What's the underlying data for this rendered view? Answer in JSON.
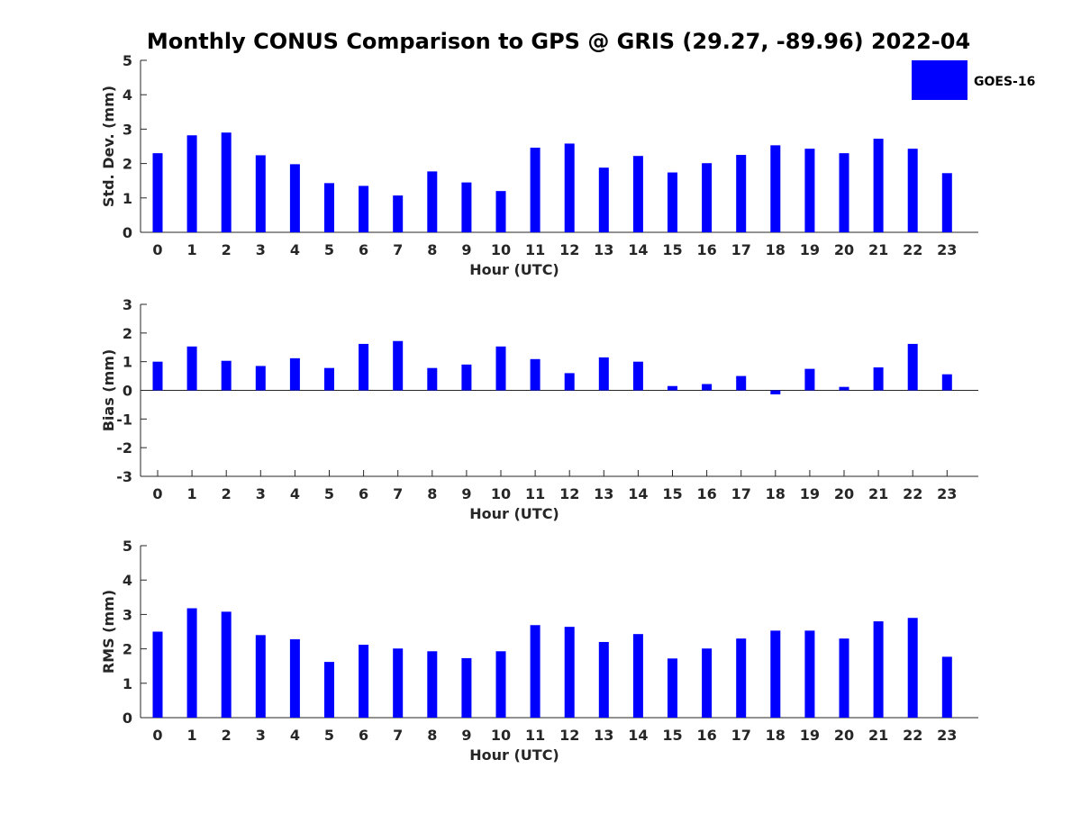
{
  "title": "Monthly CONUS Comparison to GPS @ GRIS (29.27, -89.96) 2022-04",
  "legend": {
    "label": "GOES-16",
    "color": "#0000ff",
    "placement": "top-right"
  },
  "chart_data": [
    {
      "type": "bar",
      "ylabel": "Std. Dev. (mm)",
      "xlabel": "Hour (UTC)",
      "ylim": [
        0,
        5
      ],
      "yticks": [
        "0",
        "1",
        "2",
        "3",
        "4",
        "5"
      ],
      "categories": [
        "0",
        "1",
        "2",
        "3",
        "4",
        "5",
        "6",
        "7",
        "8",
        "9",
        "10",
        "11",
        "12",
        "13",
        "14",
        "15",
        "16",
        "17",
        "18",
        "19",
        "20",
        "21",
        "22",
        "23"
      ],
      "series": [
        {
          "name": "GOES-16",
          "values": [
            2.3,
            2.82,
            2.9,
            2.24,
            1.98,
            1.43,
            1.35,
            1.07,
            1.77,
            1.45,
            1.2,
            2.46,
            2.58,
            1.88,
            2.22,
            1.74,
            2.01,
            2.25,
            2.53,
            2.43,
            2.3,
            2.72,
            2.43,
            1.72
          ]
        }
      ]
    },
    {
      "type": "bar",
      "ylabel": "Bias (mm)",
      "xlabel": "Hour (UTC)",
      "ylim": [
        -3,
        3
      ],
      "yticks": [
        "-3",
        "-2",
        "-1",
        "0",
        "1",
        "2",
        "3"
      ],
      "categories": [
        "0",
        "1",
        "2",
        "3",
        "4",
        "5",
        "6",
        "7",
        "8",
        "9",
        "10",
        "11",
        "12",
        "13",
        "14",
        "15",
        "16",
        "17",
        "18",
        "19",
        "20",
        "21",
        "22",
        "23"
      ],
      "series": [
        {
          "name": "GOES-16",
          "values": [
            1.0,
            1.53,
            1.03,
            0.85,
            1.12,
            0.78,
            1.62,
            1.72,
            0.78,
            0.9,
            1.53,
            1.09,
            0.6,
            1.15,
            1.0,
            0.15,
            0.22,
            0.5,
            -0.14,
            0.75,
            0.12,
            0.8,
            1.62,
            0.56
          ]
        }
      ]
    },
    {
      "type": "bar",
      "ylabel": "RMS (mm)",
      "xlabel": "Hour (UTC)",
      "ylim": [
        0,
        5
      ],
      "yticks": [
        "0",
        "1",
        "2",
        "3",
        "4",
        "5"
      ],
      "categories": [
        "0",
        "1",
        "2",
        "3",
        "4",
        "5",
        "6",
        "7",
        "8",
        "9",
        "10",
        "11",
        "12",
        "13",
        "14",
        "15",
        "16",
        "17",
        "18",
        "19",
        "20",
        "21",
        "22",
        "23"
      ],
      "series": [
        {
          "name": "GOES-16",
          "values": [
            2.5,
            3.18,
            3.08,
            2.4,
            2.28,
            1.62,
            2.12,
            2.01,
            1.93,
            1.73,
            1.93,
            2.69,
            2.64,
            2.2,
            2.43,
            1.72,
            2.01,
            2.3,
            2.53,
            2.53,
            2.3,
            2.8,
            2.9,
            1.77
          ]
        }
      ]
    }
  ]
}
